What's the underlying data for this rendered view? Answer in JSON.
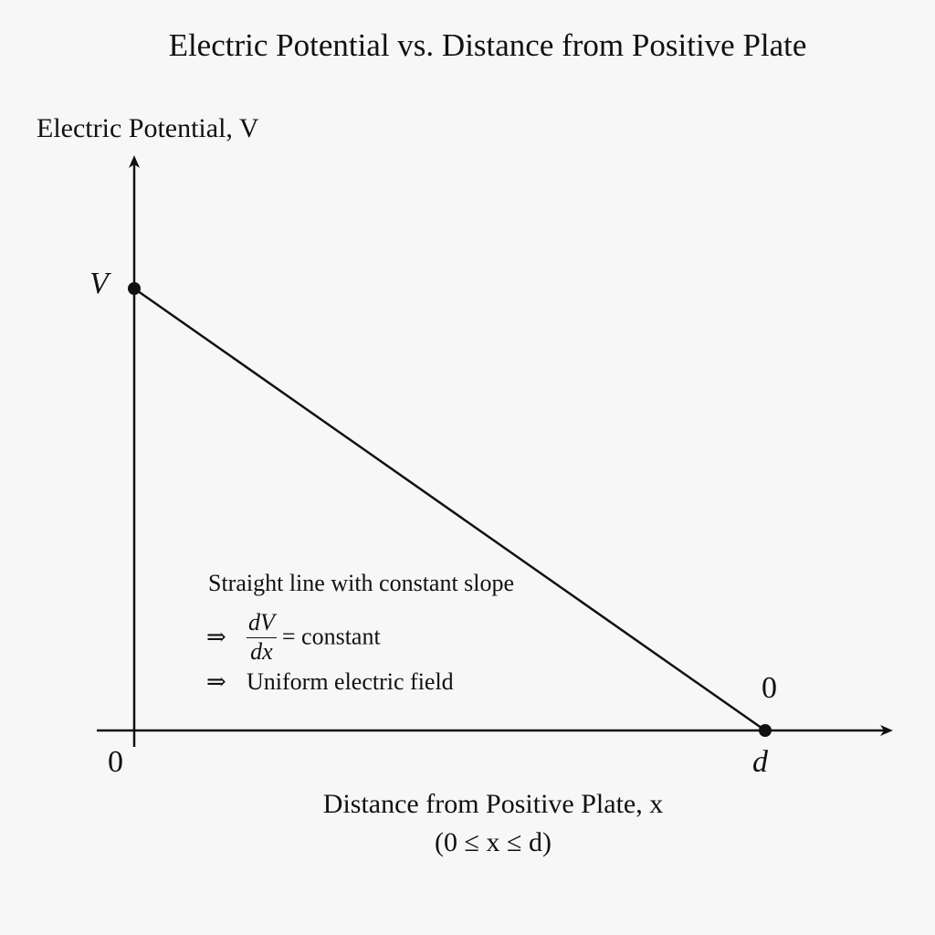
{
  "chart_data": {
    "type": "line",
    "title": "Electric Potential vs. Distance from Positive Plate",
    "ylabel": "Electric Potential, V",
    "xlabel": "Distance from Positive Plate, x",
    "x_range_label": "(0 ≤ x ≤ d)",
    "x": [
      0,
      1
    ],
    "y": [
      1,
      0
    ],
    "x_ticks": [
      "0",
      "d"
    ],
    "y_ticks": [
      "V"
    ],
    "point_labels": [
      "V",
      "0"
    ],
    "xlim": [
      0,
      1.18
    ],
    "ylim": [
      0,
      1.4
    ],
    "grid": false,
    "annotation": {
      "line1": "Straight line with constant slope",
      "implies": "⇒",
      "frac_num": "dV",
      "frac_den": "dx",
      "eq_rest": "= constant",
      "line3": "Uniform electric field"
    }
  }
}
